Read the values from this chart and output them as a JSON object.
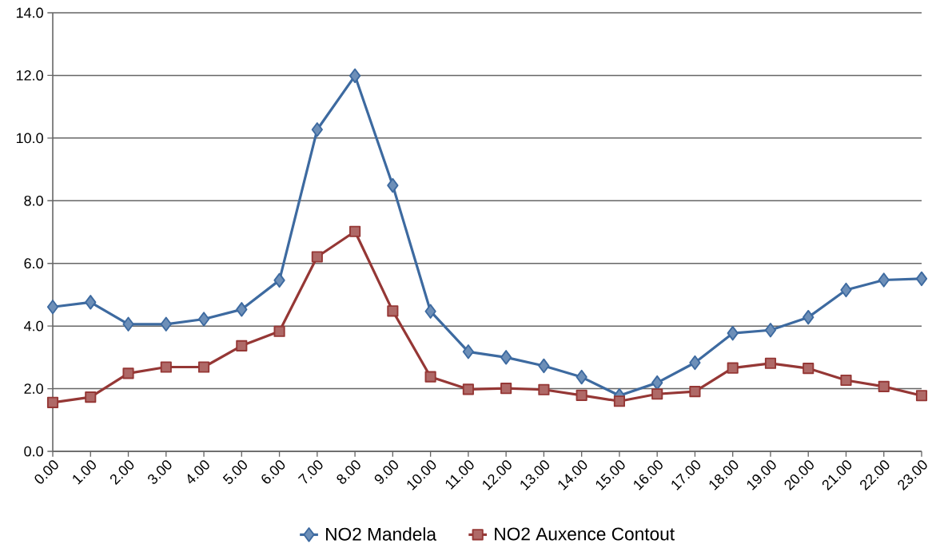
{
  "chart_data": {
    "type": "line",
    "categories": [
      "0.00",
      "1.00",
      "2.00",
      "3.00",
      "4.00",
      "5.00",
      "6.00",
      "7.00",
      "8.00",
      "9.00",
      "10.00",
      "11.00",
      "12.00",
      "13.00",
      "14.00",
      "15.00",
      "16.00",
      "17.00",
      "18.00",
      "19.00",
      "20.00",
      "21.00",
      "22.00",
      "23.00"
    ],
    "series": [
      {
        "name": "NO2 Mandela",
        "color": "#3d6aa0",
        "marker": "diamond",
        "values": [
          4.61,
          4.76,
          4.06,
          4.06,
          4.22,
          4.53,
          5.46,
          10.27,
          11.99,
          8.49,
          4.47,
          3.18,
          3.0,
          2.73,
          2.37,
          1.78,
          2.19,
          2.83,
          3.77,
          3.87,
          4.28,
          5.15,
          5.47,
          5.51
        ]
      },
      {
        "name": "NO2 Auxence Contout",
        "color": "#953735",
        "marker": "square",
        "values": [
          1.56,
          1.73,
          2.49,
          2.69,
          2.69,
          3.37,
          3.83,
          6.21,
          7.02,
          4.48,
          2.38,
          1.98,
          2.01,
          1.97,
          1.79,
          1.6,
          1.83,
          1.91,
          2.66,
          2.81,
          2.65,
          2.27,
          2.07,
          1.78
        ]
      }
    ],
    "ylim": [
      0,
      14
    ],
    "yticks": [
      {
        "value": 0,
        "label": "0.0"
      },
      {
        "value": 2,
        "label": "2.0"
      },
      {
        "value": 4,
        "label": "4.0"
      },
      {
        "value": 6,
        "label": "6.0"
      },
      {
        "value": 8,
        "label": "8.0"
      },
      {
        "value": 10,
        "label": "10.0"
      },
      {
        "value": 12,
        "label": "12.0"
      },
      {
        "value": 14,
        "label": "14.0"
      }
    ],
    "grid": "y",
    "legend": "bottom",
    "line_style": "solid"
  }
}
